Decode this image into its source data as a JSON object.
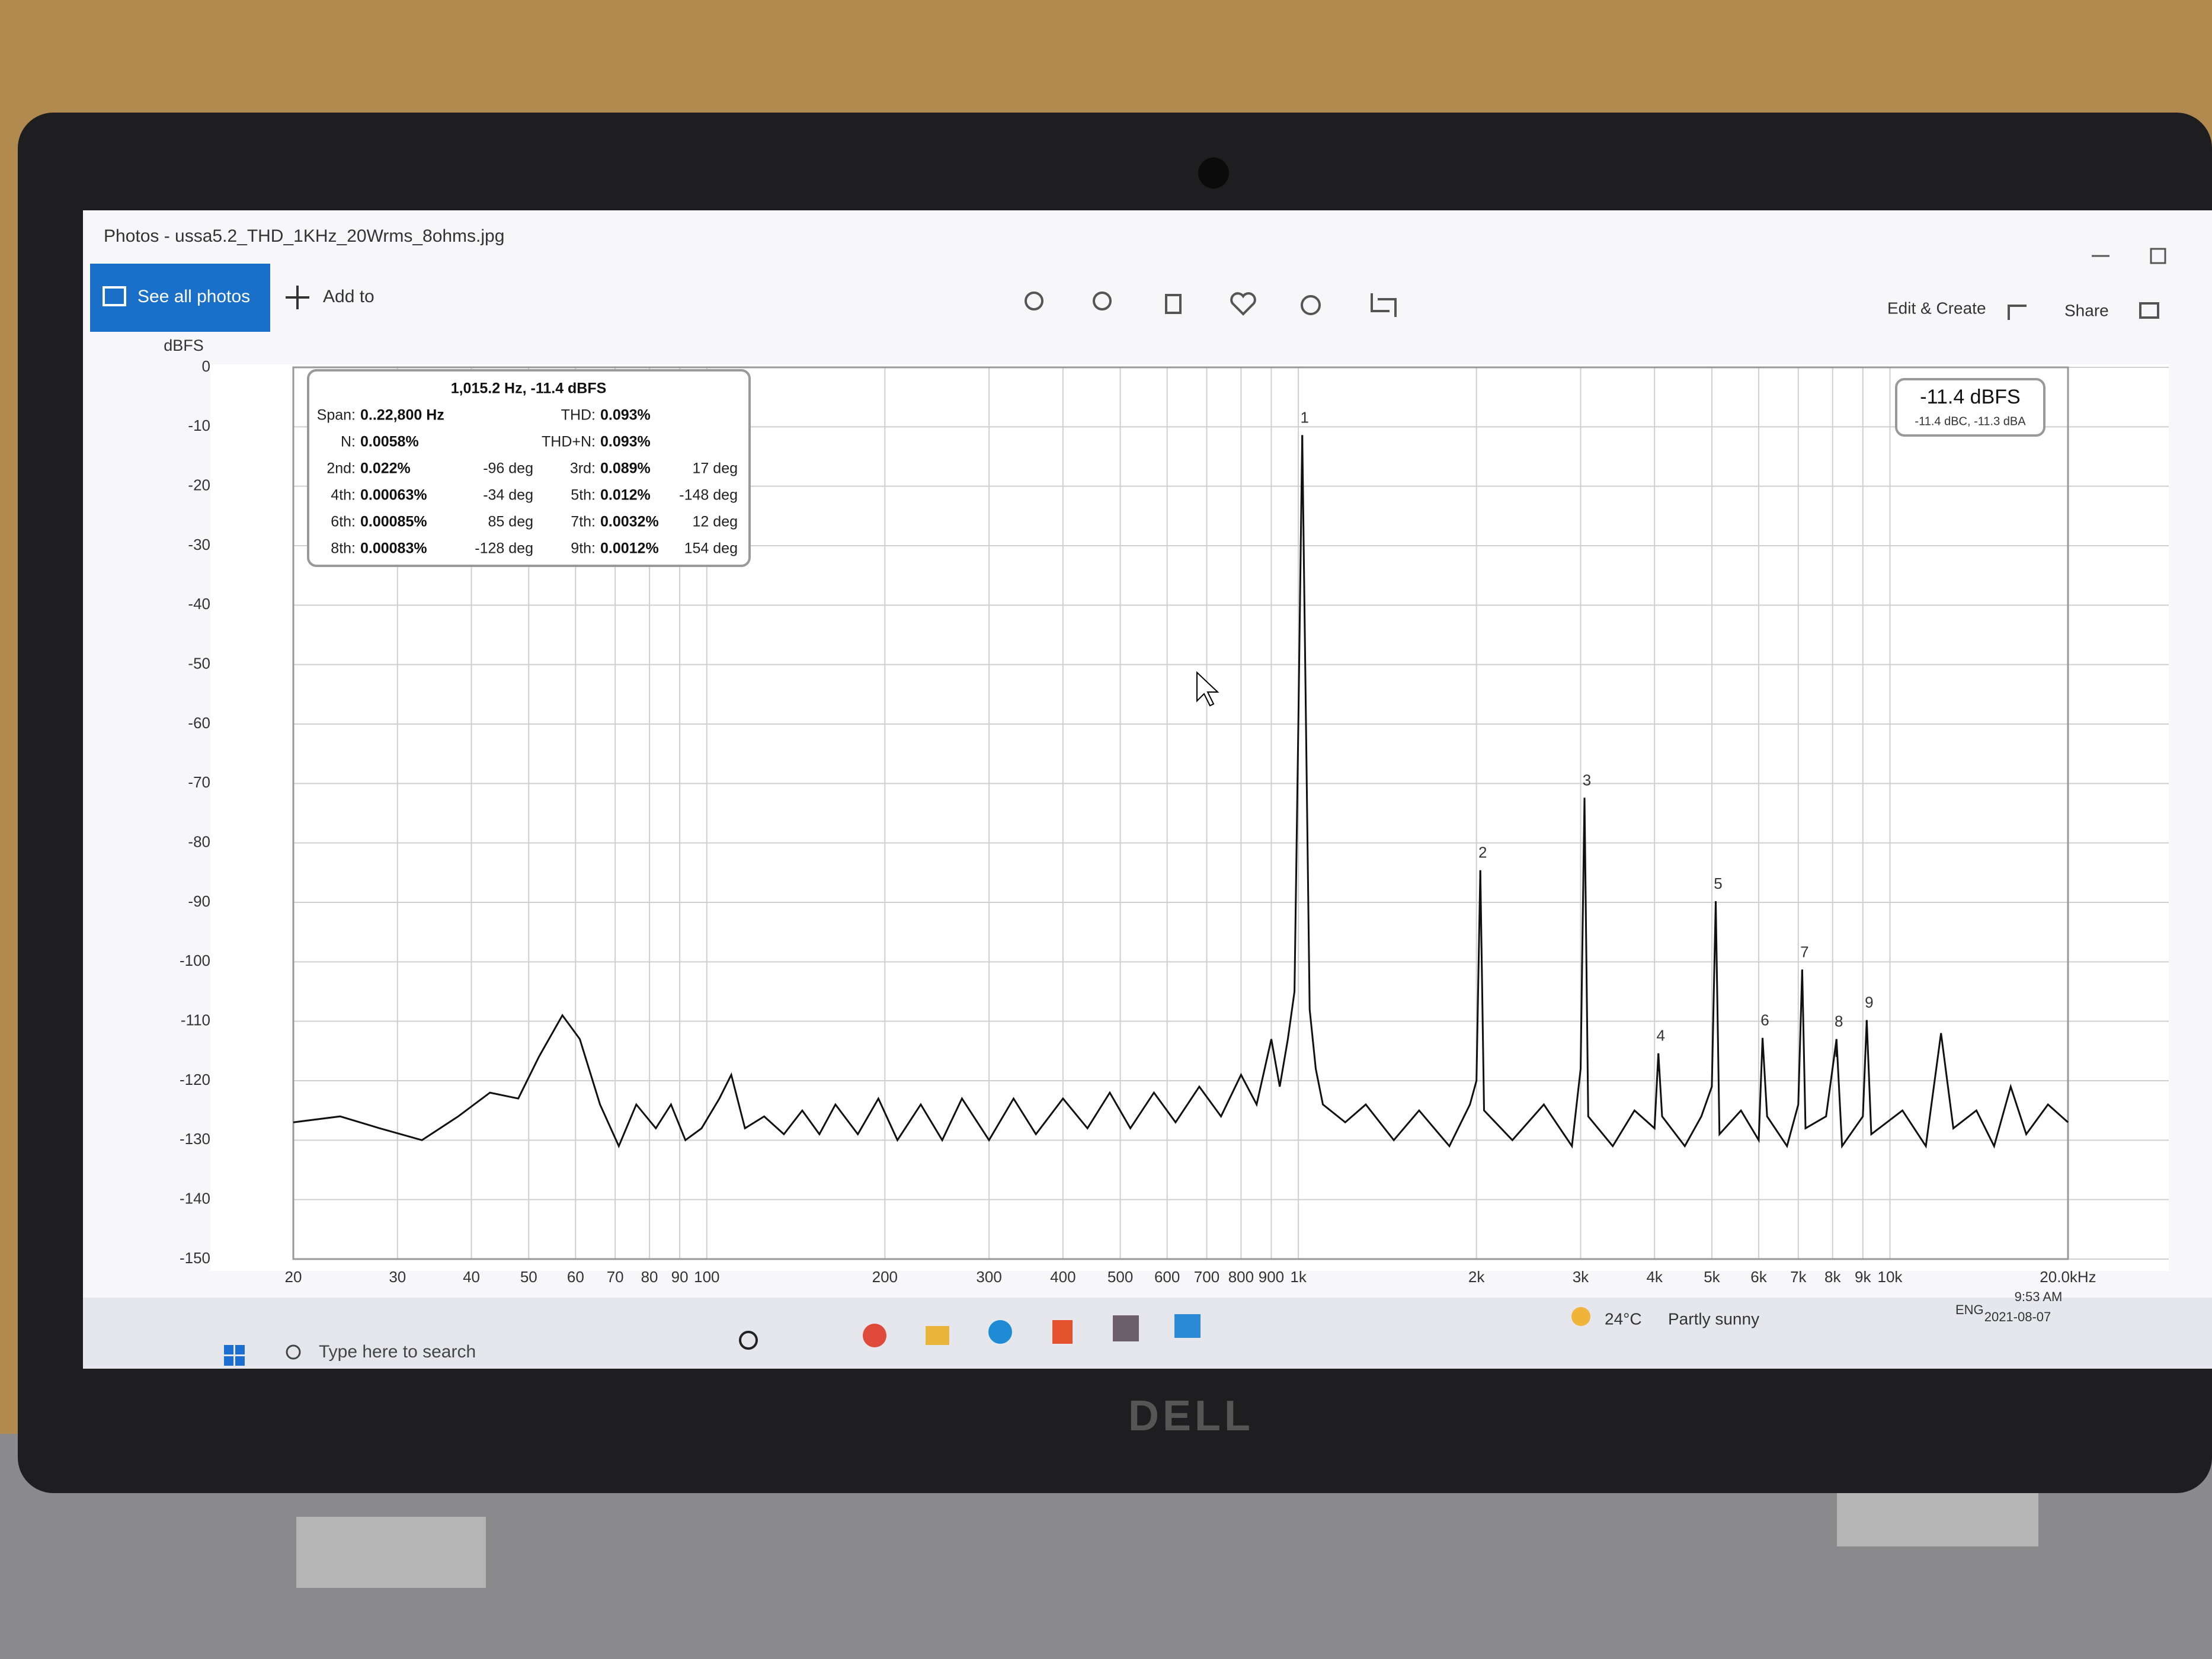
{
  "window": {
    "title": "Photos - ussa5.2_THD_1KHz_20Wrms_8ohms.jpg",
    "see_all": "See all photos",
    "add_to": "Add to",
    "edit_create": "Edit & Create",
    "share": "Share"
  },
  "chart_data": {
    "type": "line",
    "ylabel": "dBFS",
    "xlog": true,
    "grid": true,
    "color": "#111111",
    "xlim": [
      20,
      20000
    ],
    "ylim": [
      -150,
      0
    ],
    "xticks": [
      20,
      30,
      40,
      50,
      60,
      70,
      80,
      90,
      100,
      200,
      300,
      400,
      500,
      600,
      700,
      800,
      900,
      {
        "value": 1000,
        "label": "1k"
      },
      {
        "value": 2000,
        "label": "2k"
      },
      {
        "value": 3000,
        "label": "3k"
      },
      {
        "value": 4000,
        "label": "4k"
      },
      {
        "value": 5000,
        "label": "5k"
      },
      {
        "value": 6000,
        "label": "6k"
      },
      {
        "value": 7000,
        "label": "7k"
      },
      {
        "value": 8000,
        "label": "8k"
      },
      {
        "value": 9000,
        "label": "9k"
      },
      {
        "value": 10000,
        "label": "10k"
      },
      {
        "value": 20000,
        "label": "20.0kHz"
      }
    ],
    "yticks": [
      0,
      -10,
      -20,
      -30,
      -40,
      -50,
      -60,
      -70,
      -80,
      -90,
      -100,
      -110,
      -120,
      -130,
      -140,
      -150
    ],
    "x": [
      20,
      24,
      28,
      33,
      38,
      43,
      48,
      52,
      57,
      61,
      66,
      71,
      76,
      82,
      87,
      92,
      98,
      105,
      110,
      116,
      125,
      135,
      145,
      155,
      165,
      180,
      195,
      210,
      230,
      250,
      270,
      300,
      330,
      360,
      400,
      440,
      480,
      520,
      570,
      620,
      680,
      740,
      800,
      850,
      900,
      930,
      960,
      985,
      1000,
      1015.2,
      1030,
      1045,
      1070,
      1100,
      1200,
      1300,
      1450,
      1600,
      1800,
      1950,
      2000,
      2030.4,
      2060,
      2300,
      2600,
      2900,
      3000,
      3045.6,
      3090,
      3400,
      3700,
      4000,
      4060.8,
      4120,
      4500,
      4800,
      5000,
      5076,
      5150,
      5600,
      6000,
      6091.2,
      6200,
      6700,
      7000,
      7106.4,
      7200,
      7800,
      8121.6,
      8300,
      9000,
      9136.8,
      9300,
      10500,
      11500,
      12200,
      12800,
      14000,
      15000,
      16000,
      17000,
      18500,
      20000
    ],
    "values": [
      -127,
      -126,
      -128,
      -130,
      -126,
      -122,
      -123,
      -116,
      -109,
      -113,
      -124,
      -131,
      -124,
      -128,
      -124,
      -130,
      -128,
      -123,
      -119,
      -128,
      -126,
      -129,
      -125,
      -129,
      -124,
      -129,
      -123,
      -130,
      -124,
      -130,
      -123,
      -130,
      -123,
      -129,
      -123,
      -128,
      -122,
      -128,
      -122,
      -127,
      -121,
      -126,
      -119,
      -124,
      -113,
      -121,
      -113,
      -105,
      -60,
      -11.4,
      -60,
      -108,
      -118,
      -124,
      -127,
      -124,
      -130,
      -125,
      -131,
      -124,
      -120,
      -84.6,
      -125,
      -130,
      -124,
      -131,
      -118,
      -72.4,
      -126,
      -131,
      -125,
      -128,
      -115.4,
      -126,
      -131,
      -126,
      -121,
      -89.8,
      -129,
      -125,
      -130,
      -112.8,
      -126,
      -131,
      -124,
      -101.3,
      -128,
      -126,
      -113,
      -131,
      -126,
      -109.8,
      -129,
      -125,
      -131,
      -112,
      -128,
      -125,
      -131,
      -121,
      -129,
      -124,
      -127
    ],
    "harmonics": [
      {
        "label": "1",
        "x": 1015.2,
        "value": -11.4
      },
      {
        "label": "2",
        "x": 2030.4,
        "value": -84.6
      },
      {
        "label": "3",
        "x": 3045.6,
        "value": -72.4
      },
      {
        "label": "4",
        "x": 4060.8,
        "value": -115.4
      },
      {
        "label": "5",
        "x": 5076,
        "value": -89.8
      },
      {
        "label": "6",
        "x": 6091.2,
        "value": -112.8
      },
      {
        "label": "7",
        "x": 7106.4,
        "value": -101.3
      },
      {
        "label": "8",
        "x": 8121.6,
        "value": -113
      },
      {
        "label": "9",
        "x": 9136.8,
        "value": -109.8
      }
    ],
    "readout": {
      "title": "1,015.2 Hz, -11.4 dBFS",
      "summary": [
        [
          "Span:",
          "0..22,800 Hz",
          "THD:",
          "0.093%"
        ],
        [
          "N:",
          "0.0058%",
          "THD+N:",
          "0.093%"
        ]
      ],
      "rows": [
        [
          "2nd:",
          "0.022%",
          "-96 deg",
          "3rd:",
          "0.089%",
          "17 deg"
        ],
        [
          "4th:",
          "0.00063%",
          "-34 deg",
          "5th:",
          "0.012%",
          "-148 deg"
        ],
        [
          "6th:",
          "0.00085%",
          "85 deg",
          "7th:",
          "0.0032%",
          "12 deg"
        ],
        [
          "8th:",
          "0.00083%",
          "-128 deg",
          "9th:",
          "0.0012%",
          "154 deg"
        ]
      ]
    },
    "level": {
      "main": "-11.4 dBFS",
      "sub": "-11.4 dBC, -11.3 dBA"
    }
  },
  "taskbar": {
    "search": "Type here to search",
    "temp": "24°C",
    "weather": "Partly sunny",
    "lang": "ENG",
    "time": "9:53 AM",
    "date": "2021-08-07"
  },
  "brand": "DELL"
}
